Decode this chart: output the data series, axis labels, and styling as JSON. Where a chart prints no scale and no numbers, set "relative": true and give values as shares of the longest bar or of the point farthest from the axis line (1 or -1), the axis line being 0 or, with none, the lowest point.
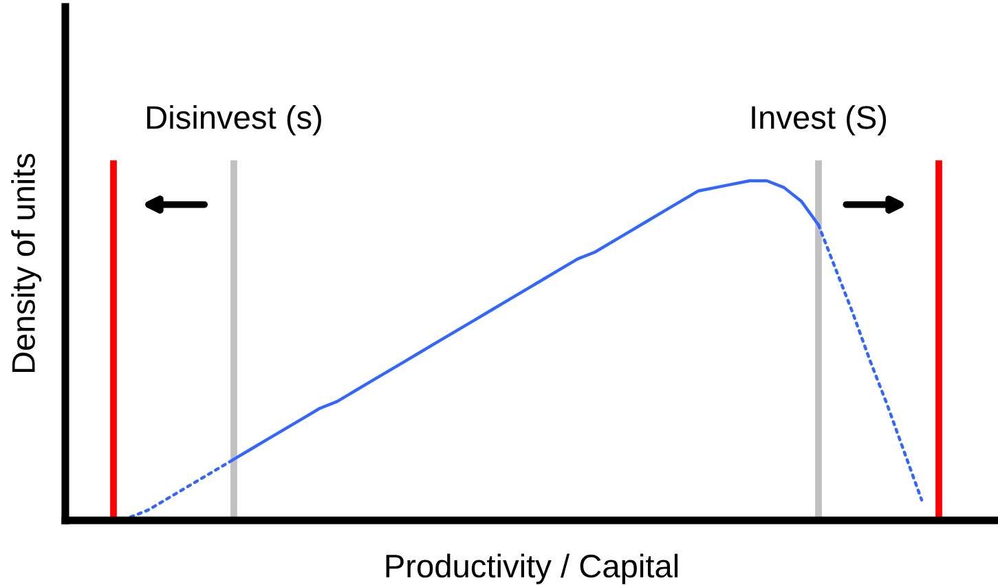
{
  "chart_data": {
    "type": "line",
    "relative": true,
    "xlabel": "Productivity / Capital",
    "ylabel": "Density of units",
    "categories": [
      null,
      null,
      null,
      null,
      null,
      null,
      null,
      null,
      null,
      null,
      null,
      null,
      null,
      null,
      null,
      null,
      null,
      null,
      null,
      null,
      null,
      null,
      null,
      null,
      null,
      null,
      null,
      null,
      null,
      null,
      null,
      null,
      null,
      null,
      null,
      null,
      null,
      null,
      null,
      null,
      null,
      null,
      null,
      null,
      null,
      null,
      null,
      null,
      null
    ],
    "series": [
      {
        "color": "#3366ff",
        "line_style": "solid",
        "values": [
          null,
          null,
          null,
          null,
          null,
          null,
          null,
          0.18,
          0.21,
          0.24,
          0.27,
          0.3,
          0.33,
          0.35,
          0.38,
          0.41,
          0.44,
          0.47,
          0.5,
          0.53,
          0.56,
          0.59,
          0.62,
          0.65,
          0.68,
          0.71,
          0.74,
          0.77,
          0.79,
          0.82,
          0.85,
          0.88,
          0.91,
          0.94,
          0.97,
          0.98,
          0.99,
          1,
          1.0,
          0.98,
          0.94,
          0.87,
          null,
          null,
          null,
          null,
          null,
          null,
          null
        ]
      },
      {
        "color": "#3366ff",
        "line_style": "dotted",
        "values": [
          null,
          0.01,
          0.03,
          0.06,
          0.09,
          0.12,
          0.15,
          0.18,
          null,
          null,
          null,
          null,
          null,
          null,
          null,
          null,
          null,
          null,
          null,
          null,
          null,
          null,
          null,
          null,
          null,
          null,
          null,
          null,
          null,
          null,
          null,
          null,
          null,
          null,
          null,
          null,
          null,
          null,
          null,
          null,
          null,
          null,
          null,
          null,
          null,
          null,
          null,
          null,
          null
        ]
      },
      {
        "color": "#3366ff",
        "line_style": "dotted",
        "values": [
          null,
          null,
          null,
          null,
          null,
          null,
          null,
          null,
          null,
          null,
          null,
          null,
          null,
          null,
          null,
          null,
          null,
          null,
          null,
          null,
          null,
          null,
          null,
          null,
          null,
          null,
          null,
          null,
          null,
          null,
          null,
          null,
          null,
          null,
          null,
          null,
          null,
          null,
          null,
          null,
          null,
          0.87,
          0.74,
          0.61,
          0.47,
          0.34,
          0.2,
          0.06,
          null
        ]
      }
    ],
    "annotations": [
      "Disinvest (s)",
      "Invest (S)"
    ],
    "grid": "x",
    "legend": false
  }
}
